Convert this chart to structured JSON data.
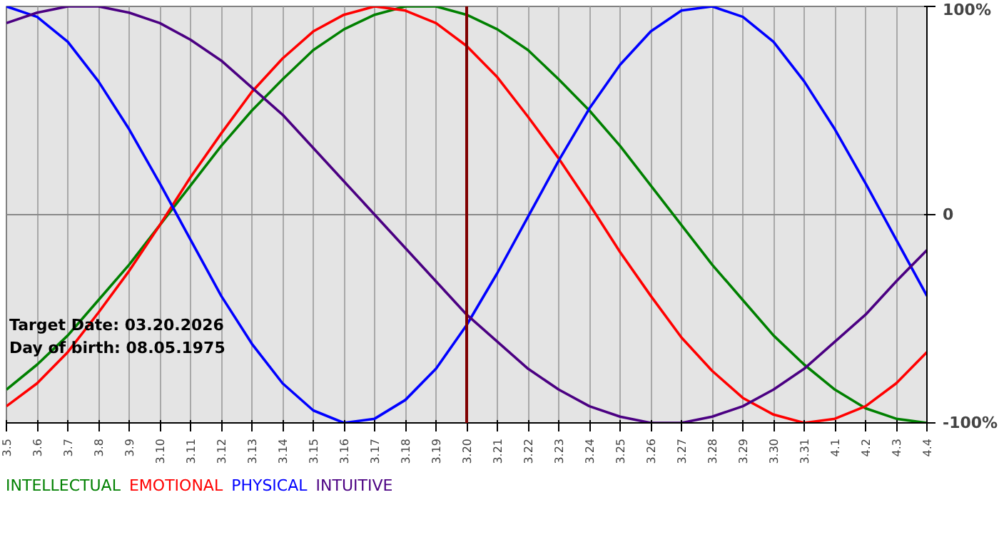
{
  "chart_data": {
    "type": "line",
    "x": [
      "2026-03-05",
      "2026-03-06",
      "2026-03-07",
      "2026-03-08",
      "2026-03-09",
      "2026-03-10",
      "2026-03-11",
      "2026-03-12",
      "2026-03-13",
      "2026-03-14",
      "2026-03-15",
      "2026-03-16",
      "2026-03-17",
      "2026-03-18",
      "2026-03-19",
      "2026-03-20",
      "2026-03-21",
      "2026-03-22",
      "2026-03-23",
      "2026-03-24",
      "2026-03-25",
      "2026-03-26",
      "2026-03-27",
      "2026-03-28",
      "2026-03-29",
      "2026-03-30",
      "2026-03-31",
      "2026-04-01",
      "2026-04-02",
      "2026-04-03",
      "2026-04-04"
    ],
    "series": [
      {
        "name": "INTELLECTUAL",
        "color": "#008000",
        "values": [
          -84,
          -72,
          -58,
          -41,
          -24,
          -5,
          14,
          33,
          50,
          65,
          79,
          89,
          96,
          100,
          100,
          96,
          89,
          79,
          65,
          50,
          33,
          14,
          -5,
          -24,
          -41,
          -58,
          -72,
          -84,
          -93,
          -98,
          -100
        ]
      },
      {
        "name": "EMOTIONAL",
        "color": "#ff0000",
        "values": [
          -92,
          -81,
          -66,
          -47,
          -27,
          -5,
          18,
          39,
          59,
          75,
          88,
          96,
          100,
          98,
          92,
          81,
          66,
          47,
          27,
          5,
          -18,
          -39,
          -59,
          -75,
          -88,
          -96,
          -100,
          -98,
          -92,
          -81,
          -66
        ]
      },
      {
        "name": "PHYSICAL",
        "color": "#0000ff",
        "values": [
          100,
          95,
          83,
          64,
          41,
          15,
          -12,
          -39,
          -62,
          -81,
          -94,
          -100,
          -98,
          -89,
          -74,
          -53,
          -28,
          -1,
          26,
          51,
          72,
          88,
          98,
          100,
          95,
          83,
          64,
          41,
          15,
          -12,
          -39
        ]
      },
      {
        "name": "INTUITIVE",
        "color": "#4b0082",
        "values": [
          92,
          97,
          100,
          100,
          97,
          92,
          84,
          74,
          61,
          48,
          32,
          16,
          0,
          -16,
          -32,
          -48,
          -61,
          -74,
          -84,
          -92,
          -97,
          -100,
          -100,
          -97,
          -92,
          -84,
          -74,
          -61,
          -48,
          -32,
          -17
        ]
      }
    ],
    "xlim": [
      "2026-03-05",
      "2026-04-04"
    ],
    "xticks": [
      {
        "value": "2026-03-05",
        "label": "3.5"
      },
      {
        "value": "2026-03-06",
        "label": "3.6"
      },
      {
        "value": "2026-03-07",
        "label": "3.7"
      },
      {
        "value": "2026-03-08",
        "label": "3.8"
      },
      {
        "value": "2026-03-09",
        "label": "3.9"
      },
      {
        "value": "2026-03-10",
        "label": "3.10"
      },
      {
        "value": "2026-03-11",
        "label": "3.11"
      },
      {
        "value": "2026-03-12",
        "label": "3.12"
      },
      {
        "value": "2026-03-13",
        "label": "3.13"
      },
      {
        "value": "2026-03-14",
        "label": "3.14"
      },
      {
        "value": "2026-03-15",
        "label": "3.15"
      },
      {
        "value": "2026-03-16",
        "label": "3.16"
      },
      {
        "value": "2026-03-17",
        "label": "3.17"
      },
      {
        "value": "2026-03-18",
        "label": "3.18"
      },
      {
        "value": "2026-03-19",
        "label": "3.19"
      },
      {
        "value": "2026-03-20",
        "label": "3.20"
      },
      {
        "value": "2026-03-21",
        "label": "3.21"
      },
      {
        "value": "2026-03-22",
        "label": "3.22"
      },
      {
        "value": "2026-03-23",
        "label": "3.23"
      },
      {
        "value": "2026-03-24",
        "label": "3.24"
      },
      {
        "value": "2026-03-25",
        "label": "3.25"
      },
      {
        "value": "2026-03-26",
        "label": "3.26"
      },
      {
        "value": "2026-03-27",
        "label": "3.27"
      },
      {
        "value": "2026-03-28",
        "label": "3.28"
      },
      {
        "value": "2026-03-29",
        "label": "3.29"
      },
      {
        "value": "2026-03-30",
        "label": "3.30"
      },
      {
        "value": "2026-03-31",
        "label": "3.31"
      },
      {
        "value": "2026-04-01",
        "label": "4.1"
      },
      {
        "value": "2026-04-02",
        "label": "4.2"
      },
      {
        "value": "2026-04-03",
        "label": "4.3"
      },
      {
        "value": "2026-04-04",
        "label": "4.4"
      }
    ],
    "ylim": [
      -100,
      100
    ],
    "yticks": [
      {
        "value": -100,
        "label": "-100%"
      },
      0,
      {
        "value": 100,
        "label": "100%"
      }
    ],
    "grid": true,
    "legend": "bottom left",
    "ref_lines": [
      {
        "axis": "x",
        "value": "2026-03-20",
        "color": "#800000"
      }
    ],
    "annotations": [
      "Target Date: 03.20.2026",
      "Day of birth: 08.05.1975"
    ]
  }
}
